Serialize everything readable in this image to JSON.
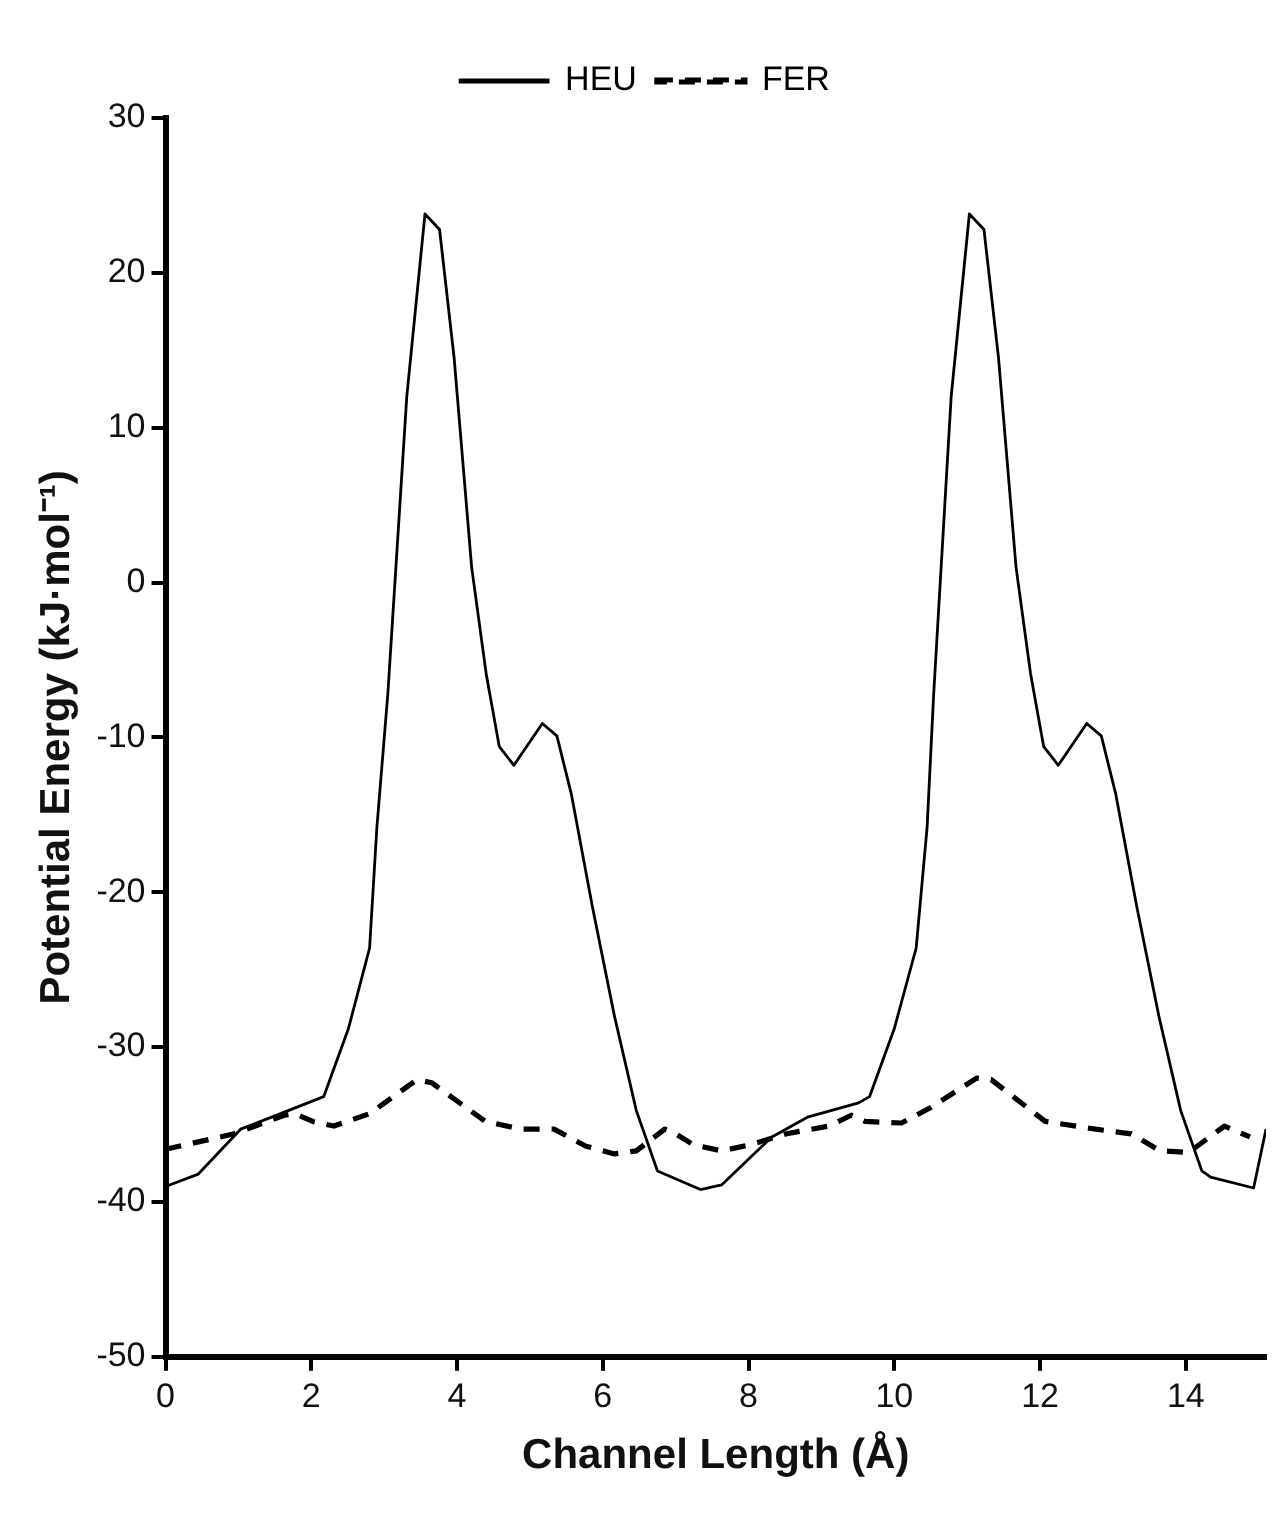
{
  "chart_data": {
    "type": "line",
    "xlabel": "Channel Length (Å)",
    "ylabel": "Potential Energy (kJ·mol⁻¹)",
    "xlim": [
      0,
      15.1
    ],
    "xticks": [
      0,
      2,
      4,
      6,
      8,
      10,
      12,
      14
    ],
    "ylim": [
      -50,
      30
    ],
    "yticks": [
      -50,
      -40,
      -30,
      -20,
      -10,
      0,
      10,
      20,
      30
    ],
    "grid": false,
    "legend": "top",
    "marker": "none",
    "series": [
      {
        "name": "HEU",
        "color": "#000000",
        "line_style": "solid",
        "x": [
          0,
          0.45,
          1.03,
          1.63,
          2.17,
          2.51,
          2.8,
          2.9,
          3.05,
          3.31,
          3.56,
          3.76,
          3.96,
          4.2,
          4.4,
          4.58,
          4.78,
          5.17,
          5.37,
          5.57,
          5.86,
          6.16,
          6.46,
          6.75,
          7.34,
          7.63,
          7.83,
          8.32,
          8.82,
          9.51,
          9.66,
          10.0,
          10.3,
          10.45,
          10.54,
          10.78,
          11.03,
          11.23,
          11.43,
          11.67,
          11.87,
          12.05,
          12.25,
          12.64,
          12.84,
          13.04,
          13.33,
          13.63,
          13.93,
          14.22,
          14.34,
          14.93,
          15.1
        ],
        "values": [
          -39.0,
          -38.2,
          -35.3,
          -34.2,
          -33.2,
          -28.8,
          -23.6,
          -15.8,
          -7.2,
          12,
          23.8,
          22.8,
          14.5,
          1,
          -5.9,
          -10.6,
          -11.8,
          -9.1,
          -9.9,
          -13.7,
          -21,
          -28,
          -34.1,
          -38,
          -39.2,
          -38.9,
          -38,
          -35.8,
          -34.5,
          -33.6,
          -33.2,
          -28.8,
          -23.6,
          -15.8,
          -7.2,
          12,
          23.8,
          22.8,
          14.5,
          1,
          -5.9,
          -10.6,
          -11.8,
          -9.1,
          -9.9,
          -13.7,
          -21,
          -28,
          -34.1,
          -38,
          -38.4,
          -39.1,
          -35.3
        ]
      },
      {
        "name": "FER",
        "color": "#000000",
        "line_style": "dashed",
        "x": [
          0,
          0.94,
          1.63,
          1.77,
          2.02,
          2.31,
          2.8,
          3.45,
          3.65,
          4.39,
          4.88,
          5.33,
          5.77,
          6.16,
          6.46,
          6.85,
          7.0,
          7.24,
          7.63,
          8.03,
          8.52,
          9.1,
          9.41,
          9.6,
          10.1,
          10.5,
          11.13,
          11.33,
          12.07,
          12.76,
          13.25,
          13.65,
          14.04,
          14.53,
          14.88
        ],
        "values": [
          -36.6,
          -35.6,
          -34.4,
          -34.3,
          -34.8,
          -35.1,
          -34.3,
          -32.1,
          -32.3,
          -34.8,
          -35.3,
          -35.3,
          -36.4,
          -36.9,
          -36.7,
          -35.3,
          -35.6,
          -36.3,
          -36.7,
          -36.3,
          -35.6,
          -35.1,
          -34.4,
          -34.8,
          -34.9,
          -33.9,
          -32.0,
          -32.1,
          -34.8,
          -35.3,
          -35.6,
          -36.7,
          -36.8,
          -35.1,
          -35.8
        ]
      }
    ]
  }
}
